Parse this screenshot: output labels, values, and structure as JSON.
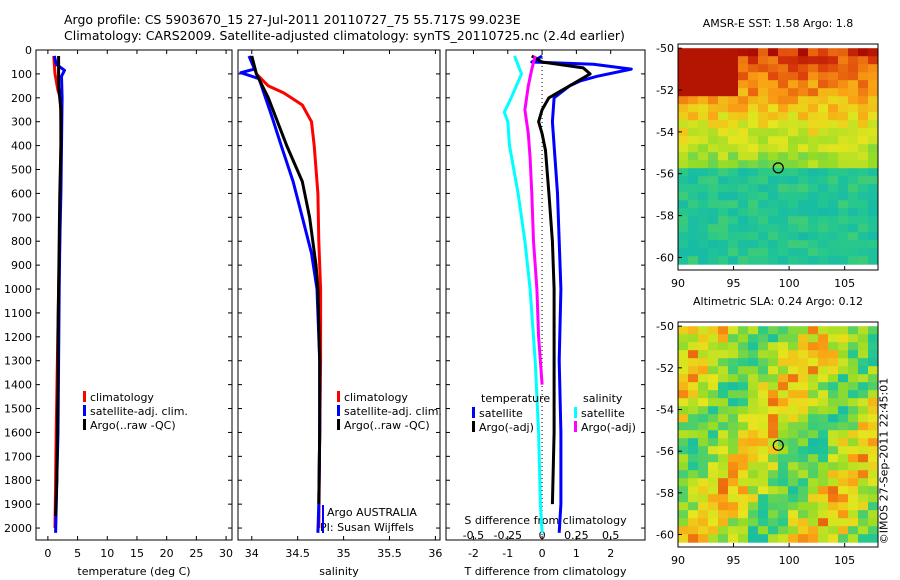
{
  "header": {
    "line1": "Argo profile: CS 5903670_15 27-Jul-2011 20110727_75 55.717S 99.023E",
    "line2": "Climatology: CARS2009. Satellite-adjusted climatology: synTS_20110725.nc (2.4d earlier)"
  },
  "colors": {
    "climatology": "#ff0000",
    "satellite": "#0000ff",
    "argo": "#000000",
    "satellite_s": "#00ffff",
    "argo_s": "#ff00ff"
  },
  "chart_data": [
    {
      "type": "line",
      "xlabel": "temperature (deg C)",
      "xticks": [
        0,
        5,
        10,
        15,
        20,
        25,
        30
      ],
      "xlim": [
        -2,
        31
      ],
      "ylim": [
        0,
        2050
      ],
      "yticks": [
        0,
        100,
        200,
        300,
        400,
        500,
        600,
        700,
        800,
        900,
        1000,
        1100,
        1200,
        1300,
        1400,
        1500,
        1600,
        1700,
        1800,
        1900,
        2000
      ],
      "legend": [
        "climatology",
        "satellite-adj. clim.",
        "Argo(..raw -QC)"
      ],
      "series": [
        {
          "name": "climatology",
          "color": "#ff0000",
          "points": [
            [
              1.0,
              25
            ],
            [
              1.2,
              100
            ],
            [
              1.7,
              170
            ],
            [
              2.1,
              200
            ],
            [
              2.2,
              300
            ],
            [
              2.2,
              400
            ],
            [
              2.1,
              600
            ],
            [
              2.0,
              800
            ],
            [
              1.8,
              1000
            ],
            [
              1.6,
              1300
            ],
            [
              1.4,
              1600
            ],
            [
              1.2,
              2000
            ]
          ]
        },
        {
          "name": "satellite-adj. clim.",
          "color": "#0000ff",
          "points": [
            [
              1.1,
              25
            ],
            [
              1.4,
              60
            ],
            [
              2.8,
              85
            ],
            [
              2.3,
              110
            ],
            [
              2.4,
              200
            ],
            [
              2.3,
              400
            ],
            [
              2.2,
              600
            ],
            [
              2.0,
              800
            ],
            [
              1.9,
              1000
            ],
            [
              1.8,
              1300
            ],
            [
              1.7,
              1600
            ],
            [
              1.5,
              1800
            ],
            [
              1.3,
              2020
            ]
          ]
        },
        {
          "name": "Argo(..raw -QC)",
          "color": "#000000",
          "points": [
            [
              1.8,
              25
            ],
            [
              1.8,
              150
            ],
            [
              2.2,
              250
            ],
            [
              2.2,
              400
            ],
            [
              2.0,
              600
            ],
            [
              1.9,
              800
            ],
            [
              1.8,
              1000
            ],
            [
              1.7,
              1200
            ],
            [
              1.7,
              1400
            ],
            [
              1.6,
              1600
            ],
            [
              1.5,
              1800
            ],
            [
              1.3,
              1950
            ]
          ]
        }
      ]
    },
    {
      "type": "line",
      "xlabel": "salinity",
      "xticks": [
        34,
        34.5,
        35,
        35.5,
        36
      ],
      "xtick_labels": [
        "34",
        "34.5",
        "35",
        "35.5",
        "36"
      ],
      "xlim": [
        33.85,
        36.05
      ],
      "ylim": [
        0,
        2050
      ],
      "legend": [
        "climatology",
        "satellite-adj. clim.",
        "Argo(..raw -QC)"
      ],
      "annotation": [
        "Argo AUSTRALIA",
        "PI: Susan Wijffels"
      ],
      "series": [
        {
          "name": "climatology",
          "color": "#ff0000",
          "points": [
            [
              33.98,
              25
            ],
            [
              34.05,
              100
            ],
            [
              34.18,
              150
            ],
            [
              34.35,
              180
            ],
            [
              34.55,
              230
            ],
            [
              34.65,
              300
            ],
            [
              34.68,
              400
            ],
            [
              34.72,
              600
            ],
            [
              34.73,
              800
            ],
            [
              34.75,
              1000
            ],
            [
              34.75,
              1300
            ],
            [
              34.74,
              1600
            ],
            [
              34.73,
              2000
            ]
          ]
        },
        {
          "name": "satellite-adj. clim.",
          "color": "#0000ff",
          "points": [
            [
              33.97,
              25
            ],
            [
              34.03,
              80
            ],
            [
              33.88,
              95
            ],
            [
              34.08,
              120
            ],
            [
              34.15,
              200
            ],
            [
              34.22,
              280
            ],
            [
              34.32,
              400
            ],
            [
              34.45,
              550
            ],
            [
              34.55,
              700
            ],
            [
              34.65,
              850
            ],
            [
              34.71,
              1000
            ],
            [
              34.74,
              1300
            ],
            [
              34.74,
              1600
            ],
            [
              34.73,
              1900
            ],
            [
              34.72,
              2020
            ]
          ]
        },
        {
          "name": "Argo(..raw -QC)",
          "color": "#000000",
          "points": [
            [
              34.0,
              25
            ],
            [
              34.05,
              100
            ],
            [
              34.18,
              200
            ],
            [
              34.28,
              300
            ],
            [
              34.38,
              400
            ],
            [
              34.55,
              550
            ],
            [
              34.63,
              700
            ],
            [
              34.7,
              900
            ],
            [
              34.72,
              1000
            ],
            [
              34.74,
              1300
            ],
            [
              34.74,
              1600
            ],
            [
              34.73,
              1900
            ]
          ]
        }
      ]
    },
    {
      "type": "line",
      "xlabel": "T difference from climatology",
      "xlabel_top": "S difference from climatology",
      "xticks": [
        -2,
        -1,
        0,
        1,
        2
      ],
      "xlim": [
        -2.8,
        3.0
      ],
      "s_ticks": [
        -0.5,
        -0.25,
        0,
        0.25,
        0.5
      ],
      "s_tick_labels": [
        "-0.5",
        "-0.25",
        "0",
        "0.25",
        "0.5"
      ],
      "legend_left_title": "temperature",
      "legend_right_title": "salinity",
      "legend": [
        "satellite",
        "Argo(-adj)",
        "satellite",
        "Argo(-adj)"
      ],
      "series": [
        {
          "name": "satellite",
          "color": "#0000ff",
          "points": [
            [
              0.0,
              25
            ],
            [
              -0.3,
              50
            ],
            [
              1.5,
              60
            ],
            [
              2.6,
              80
            ],
            [
              1.6,
              110
            ],
            [
              1.1,
              130
            ],
            [
              0.8,
              150
            ],
            [
              0.35,
              200
            ],
            [
              0.3,
              300
            ],
            [
              0.35,
              400
            ],
            [
              0.45,
              600
            ],
            [
              0.5,
              800
            ],
            [
              0.55,
              1000
            ],
            [
              0.5,
              1300
            ],
            [
              0.55,
              1600
            ],
            [
              0.55,
              1900
            ],
            [
              0.5,
              2020
            ]
          ]
        },
        {
          "name": "Argo(-adj)",
          "color": "#000000",
          "points": [
            [
              -0.3,
              25
            ],
            [
              0.0,
              50
            ],
            [
              1.2,
              75
            ],
            [
              1.4,
              100
            ],
            [
              0.8,
              150
            ],
            [
              0.2,
              200
            ],
            [
              0.0,
              250
            ],
            [
              -0.1,
              300
            ],
            [
              0.0,
              350
            ],
            [
              0.1,
              420
            ],
            [
              0.2,
              600
            ],
            [
              0.3,
              800
            ],
            [
              0.35,
              1000
            ],
            [
              0.35,
              1300
            ],
            [
              0.35,
              1600
            ],
            [
              0.3,
              1900
            ]
          ]
        },
        {
          "name": "satellite",
          "color": "#00ffff",
          "points": [
            [
              -0.8,
              25
            ],
            [
              -0.6,
              100
            ],
            [
              -0.9,
              200
            ],
            [
              -1.1,
              260
            ],
            [
              -1.0,
              300
            ],
            [
              -0.95,
              400
            ],
            [
              -0.7,
              600
            ],
            [
              -0.5,
              800
            ],
            [
              -0.35,
              1000
            ],
            [
              -0.2,
              1300
            ],
            [
              -0.1,
              1600
            ],
            [
              -0.05,
              1900
            ],
            [
              0.0,
              2020
            ]
          ]
        },
        {
          "name": "Argo(-adj)",
          "color": "#ff00ff",
          "points": [
            [
              -0.2,
              25
            ],
            [
              -0.3,
              80
            ],
            [
              -0.4,
              150
            ],
            [
              -0.5,
              250
            ],
            [
              -0.4,
              350
            ],
            [
              -0.35,
              450
            ],
            [
              -0.3,
              600
            ],
            [
              -0.25,
              800
            ],
            [
              -0.15,
              1000
            ],
            [
              -0.1,
              1200
            ],
            [
              0.0,
              1400
            ]
          ]
        }
      ]
    },
    {
      "type": "heatmap",
      "title": "AMSR-E SST: 1.58 Argo: 1.8",
      "xticks": [
        90,
        95,
        100,
        105
      ],
      "yticks": [
        -50,
        -52,
        -54,
        -56,
        -58,
        -60
      ],
      "xlim": [
        90,
        108
      ],
      "ylim": [
        -60.6,
        -49.8
      ],
      "marker": [
        99.02,
        -55.72
      ]
    },
    {
      "type": "heatmap",
      "title": "Altimetric SLA: 0.24 Argo: 0.12",
      "xticks": [
        90,
        95,
        100,
        105
      ],
      "yticks": [
        -50,
        -52,
        -54,
        -56,
        -58,
        -60
      ],
      "xlim": [
        90,
        108
      ],
      "ylim": [
        -60.6,
        -49.8
      ],
      "marker": [
        99.02,
        -55.72
      ]
    }
  ],
  "footer": {
    "credit": "©IMOS 27-Sep-2011 22:45:01"
  }
}
